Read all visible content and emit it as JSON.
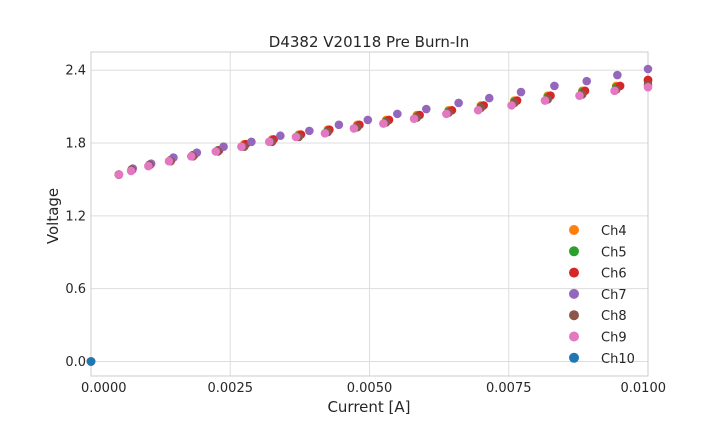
{
  "chart_data": {
    "type": "scatter",
    "title": "D4382 V20118 Pre Burn-In",
    "xlabel": "Current [A]",
    "ylabel": "Voltage",
    "xlim": [
      0.0,
      0.01
    ],
    "ylim": [
      -0.12,
      2.55
    ],
    "xticks": [
      "0.0000",
      "0.0025",
      "0.0050",
      "0.0075",
      "0.0100"
    ],
    "xtick_values": [
      0.0,
      0.0025,
      0.005,
      0.0075,
      0.01
    ],
    "yticks": [
      "0.0",
      "0.6",
      "1.2",
      "1.8",
      "2.4"
    ],
    "ytick_values": [
      0.0,
      0.6,
      1.2,
      1.8,
      2.4
    ],
    "grid": true,
    "legend_position": "lower-right",
    "series": [
      {
        "name": "Ch4",
        "color": "#ff7f0e",
        "x": [
          0.0,
          0.0005,
          0.00073,
          0.00105,
          0.00143,
          0.00183,
          0.00228,
          0.00275,
          0.00325,
          0.00373,
          0.00425,
          0.00478,
          0.0053,
          0.00585,
          0.00642,
          0.007,
          0.0076,
          0.0082,
          0.00882,
          0.00943,
          0.01
        ],
        "y": [
          0.0,
          1.54,
          1.58,
          1.62,
          1.66,
          1.7,
          1.74,
          1.79,
          1.83,
          1.87,
          1.91,
          1.95,
          1.99,
          2.03,
          2.07,
          2.11,
          2.15,
          2.19,
          2.23,
          2.27,
          2.32
        ]
      },
      {
        "name": "Ch5",
        "color": "#2ca02c",
        "x": [
          0.0,
          0.0005,
          0.00073,
          0.00105,
          0.00143,
          0.00183,
          0.00228,
          0.00275,
          0.00325,
          0.00373,
          0.00425,
          0.00478,
          0.0053,
          0.00585,
          0.00642,
          0.007,
          0.0076,
          0.0082,
          0.00882,
          0.00943,
          0.01
        ],
        "y": [
          0.0,
          1.54,
          1.58,
          1.62,
          1.66,
          1.7,
          1.74,
          1.78,
          1.82,
          1.86,
          1.9,
          1.94,
          1.98,
          2.02,
          2.06,
          2.1,
          2.14,
          2.18,
          2.22,
          2.26,
          2.31
        ]
      },
      {
        "name": "Ch6",
        "color": "#d62728",
        "x": [
          0.0,
          0.0005,
          0.00074,
          0.00106,
          0.00144,
          0.00185,
          0.0023,
          0.00278,
          0.00328,
          0.00377,
          0.00428,
          0.00482,
          0.00535,
          0.0059,
          0.00648,
          0.00705,
          0.00765,
          0.00825,
          0.00887,
          0.0095,
          0.01
        ],
        "y": [
          0.0,
          1.54,
          1.58,
          1.62,
          1.66,
          1.7,
          1.74,
          1.79,
          1.83,
          1.87,
          1.91,
          1.95,
          1.99,
          2.03,
          2.07,
          2.11,
          2.15,
          2.19,
          2.23,
          2.27,
          2.32
        ]
      },
      {
        "name": "Ch7",
        "color": "#9467bd",
        "x": [
          0.0,
          0.0005,
          0.00075,
          0.00108,
          0.00148,
          0.0019,
          0.00238,
          0.00288,
          0.0034,
          0.00392,
          0.00445,
          0.00497,
          0.0055,
          0.00602,
          0.0066,
          0.00715,
          0.00772,
          0.00832,
          0.0089,
          0.00945,
          0.01
        ],
        "y": [
          0.0,
          1.54,
          1.59,
          1.63,
          1.68,
          1.72,
          1.77,
          1.81,
          1.86,
          1.9,
          1.95,
          1.99,
          2.04,
          2.08,
          2.13,
          2.17,
          2.22,
          2.27,
          2.31,
          2.36,
          2.41
        ]
      },
      {
        "name": "Ch8",
        "color": "#8c564b",
        "x": [
          0.0,
          0.0005,
          0.00073,
          0.00105,
          0.00143,
          0.00183,
          0.00228,
          0.00275,
          0.00325,
          0.00373,
          0.00425,
          0.00478,
          0.0053,
          0.00585,
          0.00642,
          0.007,
          0.0076,
          0.0082,
          0.00882,
          0.00943,
          0.01
        ],
        "y": [
          0.0,
          1.54,
          1.58,
          1.62,
          1.65,
          1.69,
          1.73,
          1.77,
          1.81,
          1.85,
          1.89,
          1.93,
          1.97,
          2.01,
          2.05,
          2.09,
          2.13,
          2.16,
          2.2,
          2.24,
          2.28
        ]
      },
      {
        "name": "Ch9",
        "color": "#e377c2",
        "x": [
          0.0,
          0.0005,
          0.00072,
          0.00103,
          0.0014,
          0.0018,
          0.00224,
          0.0027,
          0.0032,
          0.00368,
          0.0042,
          0.00472,
          0.00525,
          0.0058,
          0.00638,
          0.00695,
          0.00755,
          0.00815,
          0.00877,
          0.0094,
          0.01
        ],
        "y": [
          0.0,
          1.54,
          1.57,
          1.61,
          1.65,
          1.69,
          1.73,
          1.77,
          1.81,
          1.85,
          1.88,
          1.92,
          1.96,
          2.0,
          2.04,
          2.07,
          2.11,
          2.15,
          2.19,
          2.23,
          2.26
        ]
      },
      {
        "name": "Ch10",
        "color": "#1f77b4",
        "x": [
          0.0
        ],
        "y": [
          0.0
        ]
      }
    ]
  }
}
